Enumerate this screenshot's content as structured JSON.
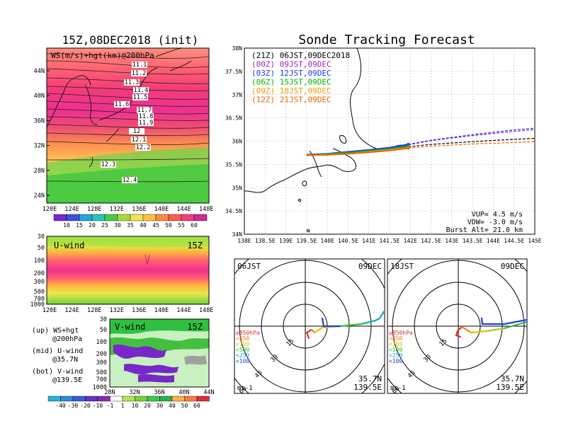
{
  "left_title": "15Z,08DEC2018 (init)",
  "right_title": "Sonde Tracking Forecast",
  "map_panel": {
    "label": "WS(m/s)+hgt(km)@200hPa",
    "lat_ticks": [
      "44N",
      "40N",
      "36N",
      "32N",
      "28N",
      "24N"
    ],
    "lon_ticks": [
      "120E",
      "124E",
      "128E",
      "132E",
      "136E",
      "140E",
      "144E",
      "148E"
    ],
    "contour_labels": [
      "11.1",
      "11.2",
      "11.3",
      "11.4",
      "11.5",
      "11.6",
      "11.7",
      "11.8",
      "11.9",
      "12",
      "12.1",
      "12.2",
      "12.3",
      "12.4"
    ]
  },
  "ws_colorbar": [
    "10",
    "15",
    "20",
    "25",
    "30",
    "35",
    "40",
    "45",
    "50",
    "55",
    "60"
  ],
  "uwind_panel": {
    "label": "U-wind",
    "time": "15Z",
    "p_ticks": [
      "30",
      "50",
      "100",
      "200",
      "300",
      "500",
      "700",
      "1000"
    ],
    "lon_ticks": [
      "120E",
      "124E",
      "128E",
      "132E",
      "136E",
      "140E",
      "144E",
      "148E"
    ]
  },
  "vwind_panel": {
    "label": "V-wind",
    "time": "15Z",
    "p_ticks": [
      "30",
      "50",
      "100",
      "200",
      "300",
      "500",
      "700",
      "1000"
    ],
    "lat_ticks": [
      "28N",
      "32N",
      "36N",
      "40N",
      "44N"
    ]
  },
  "notes": [
    {
      "a": "(up) WS+hgt",
      "b": "@200hPa"
    },
    {
      "a": "(mid) U-wind",
      "b": "@35.7N"
    },
    {
      "a": "(bot) V-wind",
      "b": "@139.5E"
    }
  ],
  "wind_colorbar": [
    "-40",
    "-30",
    "-20",
    "-10",
    "-1",
    "1",
    "10",
    "20",
    "30",
    "40",
    "50",
    "60"
  ],
  "track_panel": {
    "lat_ticks": [
      "38N",
      "37.5N",
      "37N",
      "36.5N",
      "36N",
      "35.5N",
      "35N",
      "34.5N",
      "34N"
    ],
    "lon_ticks": [
      "138E",
      "138.5E",
      "139E",
      "139.5E",
      "140E",
      "140.5E",
      "141E",
      "141.5E",
      "142E",
      "142.5E",
      "143E",
      "143.5E",
      "144E",
      "144.5E",
      "145E"
    ],
    "legend": [
      {
        "label": "(21Z) 06JST,09DEC2018",
        "color": "#000000"
      },
      {
        "label": "(00Z) 09JST,09DEC",
        "color": "#a020c8"
      },
      {
        "label": "(03Z) 12JST,09DEC",
        "color": "#1e3cff"
      },
      {
        "label": "(06Z) 15JST,09DEC",
        "color": "#00b400"
      },
      {
        "label": "(09Z) 18JST,09DEC",
        "color": "#e6a000"
      },
      {
        "label": "(12Z) 21JST,09DEC",
        "color": "#f06400"
      }
    ],
    "params": [
      "VUP= 4.5 m/s",
      "VDW= -3.0 m/s",
      "Burst Alt= 21.0 km"
    ]
  },
  "hodographs": [
    {
      "time": "06JST",
      "date": "09DEC",
      "lat": "35.7N",
      "lon": "139.5E",
      "units": "ms-1",
      "rings": [
        "15",
        "30",
        "45",
        "60"
      ]
    },
    {
      "time": "18JST",
      "date": "09DEC",
      "lat": "35.7N",
      "lon": "139.5E",
      "units": "ms-1",
      "rings": [
        "15",
        "30",
        "45",
        "60"
      ]
    }
  ],
  "hodo_legend": [
    {
      "label": "≥850hPa",
      "color": "#e03020"
    },
    {
      "label": "<850",
      "color": "#f07820"
    },
    {
      "label": "<700",
      "color": "#e0c000"
    },
    {
      "label": "<500",
      "color": "#30c030"
    },
    {
      "label": "<250",
      "color": "#20a0d0"
    },
    {
      "label": "<100",
      "color": "#2040e0"
    }
  ],
  "chart_data": {
    "type": "line",
    "title": "Sonde Tracking Forecast",
    "xlim": [
      138,
      145
    ],
    "ylim": [
      34,
      38
    ],
    "series": [
      {
        "name": "(21Z) 06JST,09DEC2018",
        "color": "#000000",
        "x": [
          139.5,
          140.0,
          140.5,
          141.0,
          141.5,
          141.95,
          142.5,
          143.5,
          144.5,
          145.0
        ],
        "y": [
          35.7,
          35.71,
          35.74,
          35.78,
          35.82,
          35.88,
          35.93,
          35.99,
          36.04,
          36.06
        ]
      },
      {
        "name": "(00Z) 09JST,09DEC",
        "color": "#a020c8",
        "x": [
          139.5,
          140.0,
          140.5,
          141.0,
          141.5,
          141.95,
          142.5,
          143.5,
          144.5,
          145.0
        ],
        "y": [
          35.7,
          35.72,
          35.76,
          35.8,
          35.85,
          35.92,
          36.01,
          36.12,
          36.21,
          36.25
        ]
      },
      {
        "name": "(03Z) 12JST,09DEC",
        "color": "#1e3cff",
        "x": [
          139.5,
          140.0,
          140.5,
          141.0,
          141.5,
          141.95,
          142.5,
          143.5,
          144.5,
          145.0
        ],
        "y": [
          35.71,
          35.73,
          35.77,
          35.81,
          35.86,
          35.93,
          36.02,
          36.14,
          36.24,
          36.28
        ]
      },
      {
        "name": "(06Z) 15JST,09DEC",
        "color": "#00b400",
        "x": [
          139.5,
          140.0,
          140.5,
          141.0,
          141.5,
          141.95
        ],
        "y": [
          35.7,
          35.72,
          35.75,
          35.79,
          35.83,
          35.89
        ]
      },
      {
        "name": "(09Z) 18JST,09DEC",
        "color": "#e6a000",
        "x": [
          139.5,
          140.0,
          140.5,
          141.0,
          141.5,
          141.95
        ],
        "y": [
          35.7,
          35.71,
          35.73,
          35.77,
          35.81,
          35.86
        ]
      },
      {
        "name": "(12Z) 21JST,09DEC",
        "color": "#f06400",
        "x": [
          139.5,
          140.0,
          140.5,
          141.0,
          141.5,
          141.95,
          142.5,
          143.5,
          144.5,
          145.0
        ],
        "y": [
          35.7,
          35.71,
          35.73,
          35.76,
          35.8,
          35.85,
          35.89,
          35.94,
          35.97,
          35.99
        ]
      }
    ]
  }
}
